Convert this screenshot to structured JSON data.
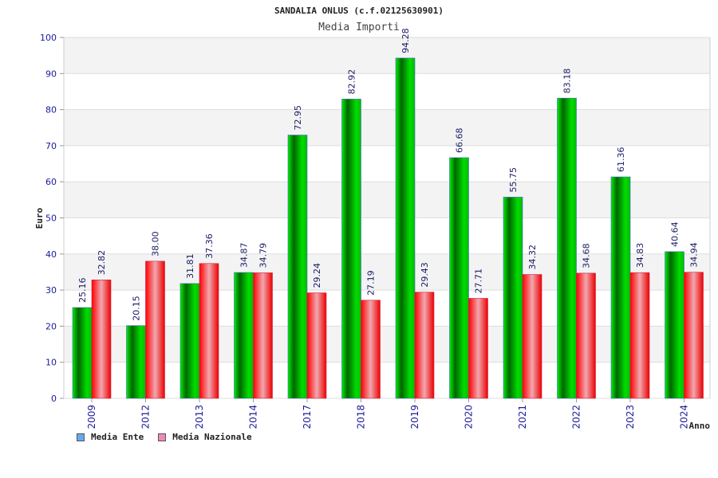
{
  "header": {
    "title": "SANDALIA ONLUS (c.f.02125630901)",
    "subtitle": "Media Importi"
  },
  "colors": {
    "ente": "#00cc00",
    "nazionale": "#ee1111",
    "ente_legend": "#66aaee",
    "nazionale_legend": "#ee88bb",
    "band": "#f3f3f3",
    "grid": "#dddddd"
  },
  "legend": {
    "ente": "Media Ente",
    "nazionale": "Media Nazionale"
  },
  "chart_data": {
    "type": "bar",
    "title": "SANDALIA ONLUS (c.f.02125630901)",
    "subtitle": "Media Importi",
    "xlabel": "Anno",
    "ylabel": "Euro",
    "ylim": [
      0,
      100
    ],
    "yticks": [
      0,
      10,
      20,
      30,
      40,
      50,
      60,
      70,
      80,
      90,
      100
    ],
    "grid": true,
    "legend_position": "bottom-left",
    "categories": [
      "2009",
      "2012",
      "2013",
      "2014",
      "2017",
      "2018",
      "2019",
      "2020",
      "2021",
      "2022",
      "2023",
      "2024"
    ],
    "series": [
      {
        "name": "Media Ente",
        "values": [
          25.16,
          20.15,
          31.81,
          34.87,
          72.95,
          82.92,
          94.28,
          66.68,
          55.75,
          83.18,
          61.36,
          40.64
        ],
        "labels": [
          "25.16",
          "20.15",
          "31.81",
          "34.87",
          "72.95",
          "82.92",
          "94.28",
          "66.68",
          "55.75",
          "83.18",
          "61.36",
          "40.64"
        ]
      },
      {
        "name": "Media Nazionale",
        "values": [
          32.82,
          38.0,
          37.36,
          34.79,
          29.24,
          27.19,
          29.43,
          27.71,
          34.32,
          34.68,
          34.83,
          34.94
        ],
        "labels": [
          "32.82",
          "38.00",
          "37.36",
          "34.79",
          "29.24",
          "27.19",
          "29.43",
          "27.71",
          "34.32",
          "34.68",
          "34.83",
          "34.94"
        ]
      }
    ]
  }
}
